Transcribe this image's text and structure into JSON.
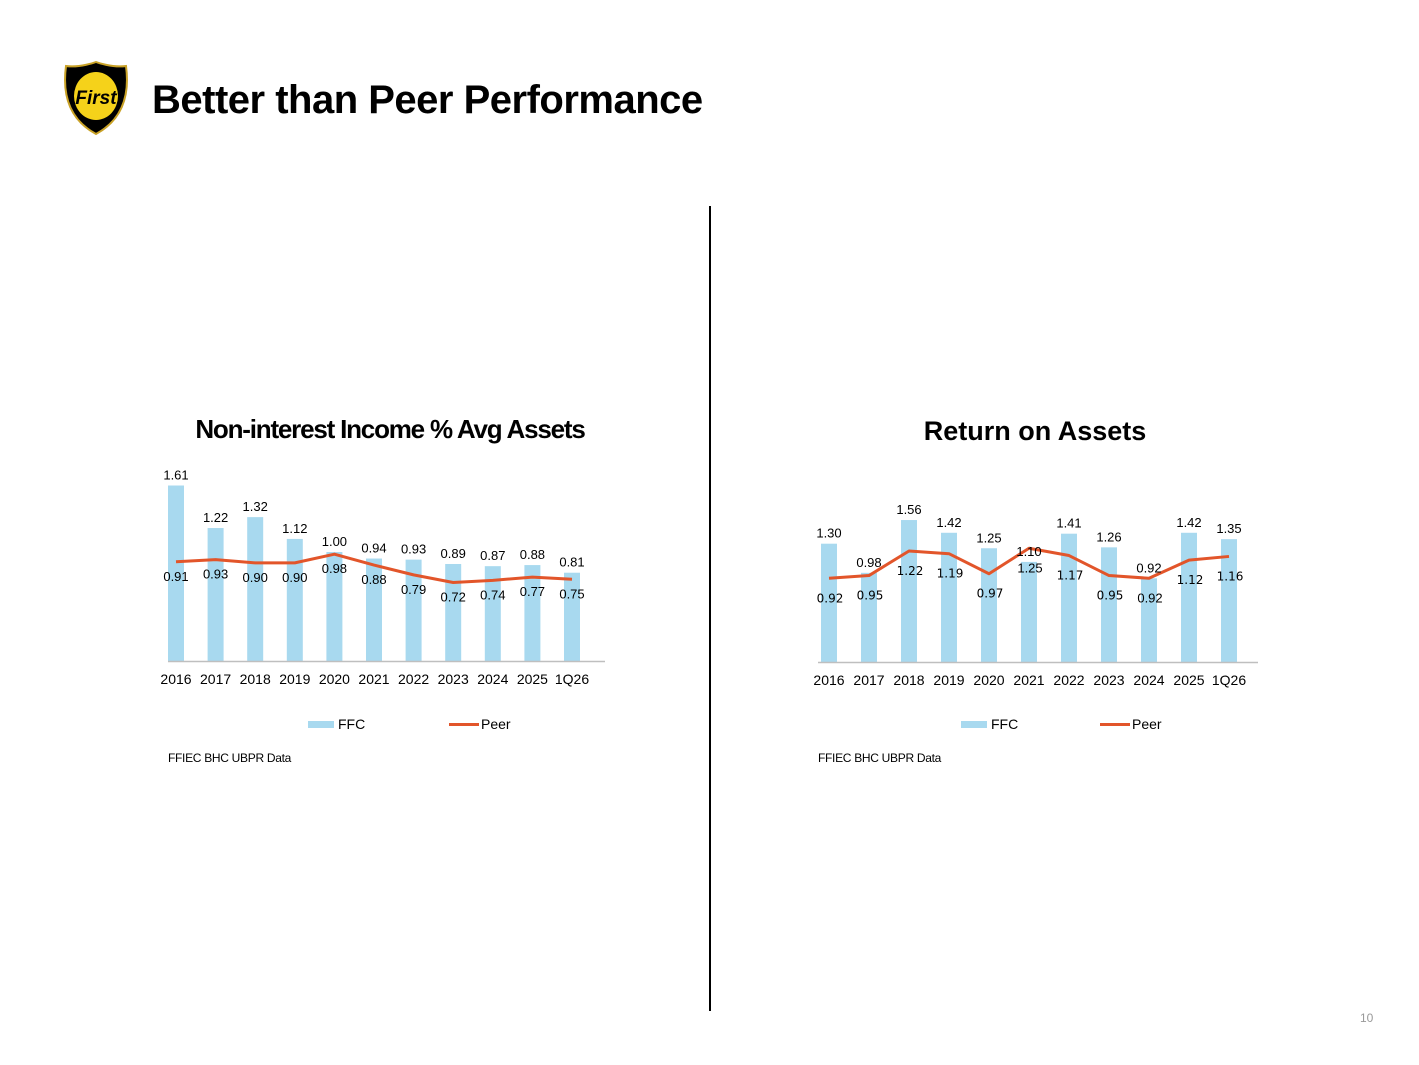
{
  "title": "Better than Peer Performance",
  "logo": {
    "text": "First",
    "icon": "first-shield-logo"
  },
  "page_number": "10",
  "colors": {
    "bar": "#a8d9ef",
    "line": "#e2552a",
    "axis": "#bfbfbf"
  },
  "chart_data": [
    {
      "type": "bar",
      "title": "Non-interest Income % Avg Assets",
      "categories": [
        "2016",
        "2017",
        "2018",
        "2019",
        "2020",
        "2021",
        "2022",
        "2023",
        "2024",
        "2025",
        "1Q26"
      ],
      "series": [
        {
          "name": "FFC",
          "type": "bar",
          "values": [
            1.61,
            1.22,
            1.32,
            1.12,
            1.0,
            0.94,
            0.93,
            0.89,
            0.87,
            0.88,
            0.81
          ]
        },
        {
          "name": "Peer",
          "type": "line",
          "values": [
            0.91,
            0.93,
            0.9,
            0.9,
            0.98,
            0.88,
            0.79,
            0.72,
            0.74,
            0.77,
            0.75
          ]
        }
      ],
      "legend_position": "bottom",
      "grid": false,
      "source": "FFIEC BHC UBPR Data"
    },
    {
      "type": "bar",
      "title": "Return on Assets",
      "categories": [
        "2016",
        "2017",
        "2018",
        "2019",
        "2020",
        "2021",
        "2022",
        "2023",
        "2024",
        "2025",
        "1Q26"
      ],
      "series": [
        {
          "name": "FFC",
          "type": "bar",
          "values": [
            1.3,
            0.98,
            1.56,
            1.42,
            1.25,
            1.1,
            1.41,
            1.26,
            0.92,
            1.42,
            1.35
          ]
        },
        {
          "name": "Peer",
          "type": "line",
          "values": [
            0.92,
            0.95,
            1.22,
            1.19,
            0.97,
            1.25,
            1.17,
            0.95,
            0.92,
            1.12,
            1.16
          ]
        }
      ],
      "legend_position": "bottom",
      "grid": false,
      "source": "FFIEC BHC UBPR Data"
    }
  ]
}
